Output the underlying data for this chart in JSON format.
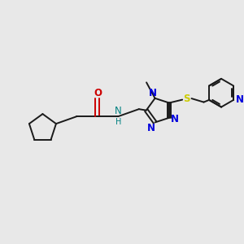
{
  "bg_color": "#e8e8e8",
  "bond_color": "#1a1a1a",
  "n_color": "#0000dd",
  "o_color": "#cc0000",
  "s_color": "#cccc00",
  "nh_color": "#008080",
  "figsize": [
    3.0,
    3.0
  ],
  "dpi": 100,
  "xlim": [
    0,
    10
  ],
  "ylim": [
    0,
    10
  ]
}
